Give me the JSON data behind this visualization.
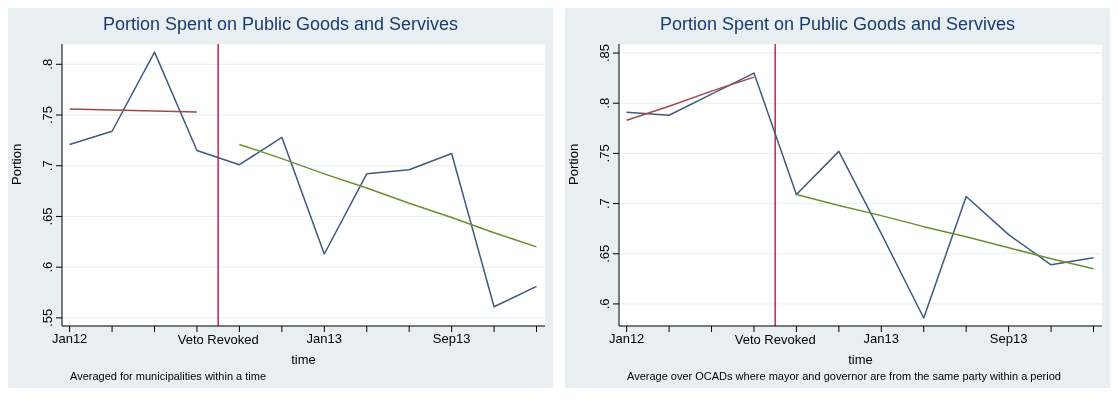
{
  "chart_data": [
    {
      "type": "line",
      "title": "Portion Spent on Public Goods and Servives",
      "xlabel": "time",
      "ylabel": "Portion",
      "annotations": [
        "Averaged for municipalities within a time"
      ],
      "categories": [
        "Jan12",
        null,
        null,
        null,
        null,
        null,
        "Jan13",
        null,
        null,
        "Sep13",
        null,
        null
      ],
      "ylim": [
        0.542,
        0.82
      ],
      "yticks": [
        {
          "value": 0.55,
          "label": ".55"
        },
        {
          "value": 0.6,
          "label": ".6"
        },
        {
          "value": 0.65,
          "label": ".65"
        },
        {
          "value": 0.7,
          "label": ".7"
        },
        {
          "value": 0.75,
          "label": ".75"
        },
        {
          "value": 0.8,
          "label": ".8"
        }
      ],
      "grid": "y",
      "marker": "none",
      "series": [
        {
          "color": "#3e5a7e",
          "values": [
            0.721,
            0.734,
            0.812,
            0.715,
            0.701,
            0.728,
            0.613,
            0.692,
            0.696,
            0.712,
            0.561,
            0.581
          ]
        },
        {
          "color": "#a04848",
          "values": [
            0.756,
            0.755,
            0.754,
            0.753,
            null,
            null,
            null,
            null,
            null,
            null,
            null,
            null
          ]
        },
        {
          "color": "#6b8e2e",
          "values": [
            null,
            null,
            null,
            null,
            0.721,
            0.707,
            0.692,
            0.678,
            0.663,
            0.649,
            0.634,
            0.62
          ]
        }
      ],
      "ref_lines": [
        {
          "axis": "x",
          "label": "Veto Revoked",
          "color": "#d0204a"
        }
      ]
    },
    {
      "type": "line",
      "title": "Portion Spent on Public Goods and Servives",
      "xlabel": "time",
      "ylabel": "Portion",
      "annotations": [
        "Average over OCADs where mayor and governor are from the same party within a period"
      ],
      "categories": [
        "Jan12",
        null,
        null,
        null,
        null,
        null,
        "Jan13",
        null,
        null,
        "Sep13",
        null,
        null
      ],
      "ylim": [
        0.578,
        0.859
      ],
      "yticks": [
        {
          "value": 0.6,
          "label": ".6"
        },
        {
          "value": 0.65,
          "label": ".65"
        },
        {
          "value": 0.7,
          "label": ".7"
        },
        {
          "value": 0.75,
          "label": ".75"
        },
        {
          "value": 0.8,
          "label": ".8"
        },
        {
          "value": 0.85,
          "label": ".85"
        }
      ],
      "grid": "y",
      "marker": "none",
      "series": [
        {
          "color": "#3e5a7e",
          "values": [
            0.791,
            0.788,
            0.809,
            0.83,
            0.709,
            0.752,
            0.67,
            0.586,
            0.707,
            0.669,
            0.639,
            0.646
          ]
        },
        {
          "color": "#a04848",
          "values": [
            0.783,
            0.797,
            0.812,
            0.826,
            null,
            null,
            null,
            null,
            null,
            null,
            null,
            null
          ]
        },
        {
          "color": "#6b8e2e",
          "values": [
            null,
            null,
            null,
            null,
            0.709,
            0.698,
            0.688,
            0.677,
            0.667,
            0.656,
            0.645,
            0.635
          ]
        }
      ],
      "ref_lines": [
        {
          "axis": "x",
          "label": "Veto Revoked",
          "color": "#d0204a"
        }
      ]
    }
  ]
}
